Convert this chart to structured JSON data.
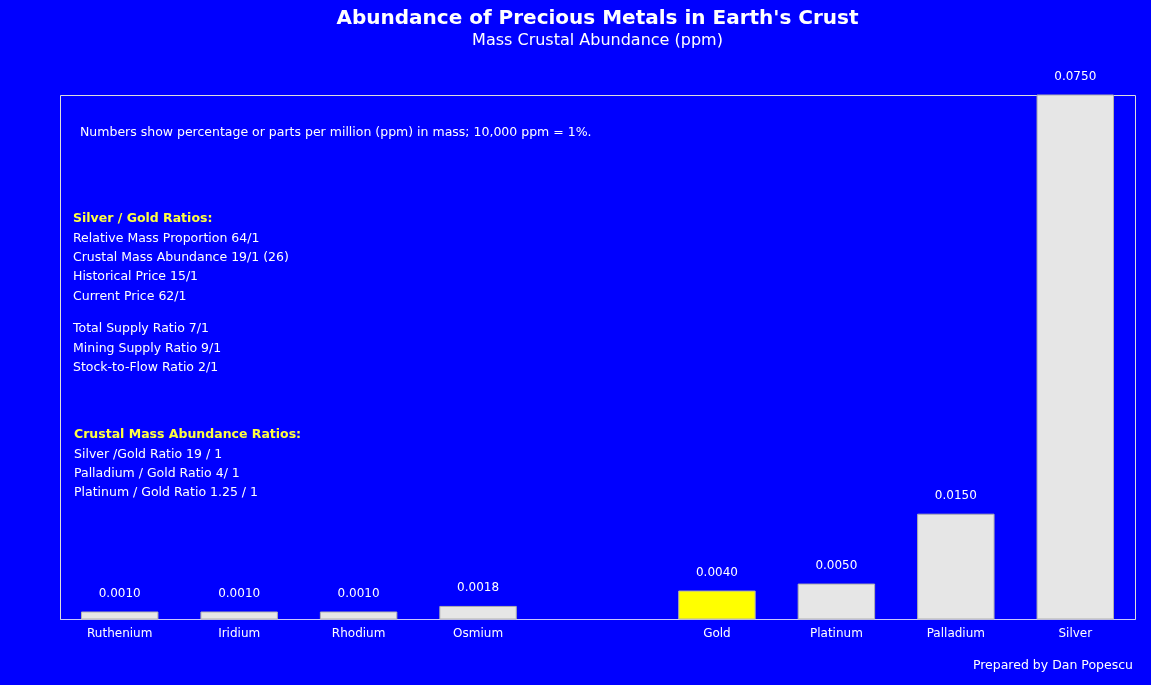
{
  "chart_data": {
    "type": "bar",
    "title": "Abundance of Precious Metals in Earth's Crust",
    "subtitle": "Mass Crustal Abundance  (ppm)",
    "categories": [
      "Ruthenium",
      "Iridium",
      "Rhodium",
      "Osmium",
      null,
      "Gold",
      "Platinum",
      "Palladium",
      "Silver"
    ],
    "values": [
      0.001,
      0.001,
      0.001,
      0.0018,
      null,
      0.004,
      0.005,
      0.015,
      0.075
    ],
    "value_labels": [
      "0.0010",
      "0.0010",
      "0.0010",
      "0.0018",
      null,
      "0.0040",
      "0.0050",
      "0.0150",
      "0.0750"
    ],
    "colors": [
      "#e6e6e6",
      "#e6e6e6",
      "#e6e6e6",
      "#e6e6e6",
      "#e6e6e6",
      "#ffff00",
      "#e6e6e6",
      "#e6e6e6",
      "#e6e6e6"
    ],
    "annotations": [
      "Numbers show percentage or parts per million (ppm) in mass; 10,000 ppm = 1%.",
      "Silver / Gold Ratios:",
      "Relative Mass Proportion    64/1",
      "Crustal Mass Abundance    19/1 (26)",
      "Historical  Price    15/1",
      "Current Price    62/1",
      "Total Supply Ratio    7/1",
      "Mining Supply  Ratio    9/1",
      "Stock-to-Flow Ratio    2/1",
      "Crustal Mass Abundance Ratios:",
      "Silver /Gold Ratio    19 / 1",
      "Palladium / Gold Ratio    4/ 1",
      "Platinum / Gold Ratio    1.25 / 1",
      "Prepared by Dan Popescu"
    ],
    "legend": false,
    "grid": false
  }
}
